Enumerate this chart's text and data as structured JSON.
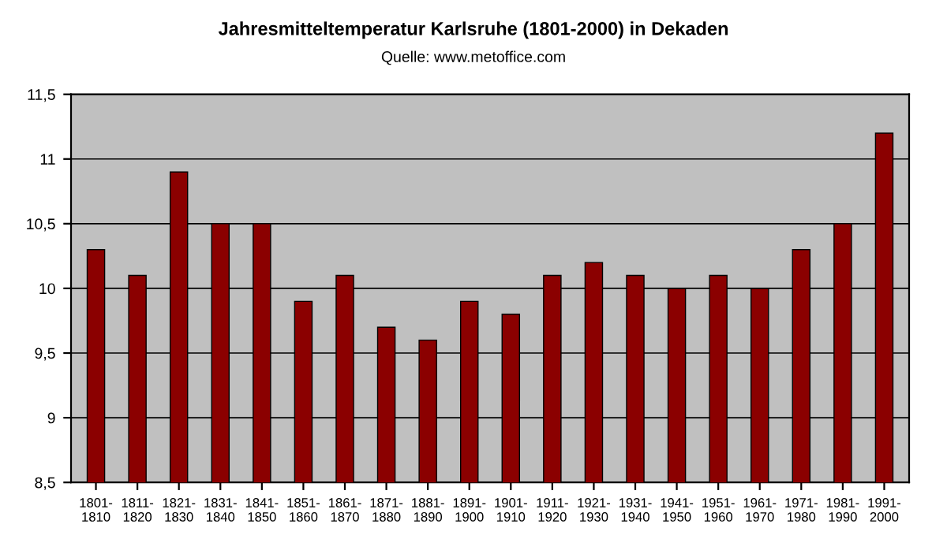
{
  "chart_data": {
    "type": "bar",
    "title": "Jahresmitteltemperatur Karlsruhe (1801-2000) in Dekaden",
    "annotations": [
      "Quelle: www.metoffice.com"
    ],
    "categories": [
      "1801-\n1810",
      "1811-\n1820",
      "1821-\n1830",
      "1831-\n1840",
      "1841-\n1850",
      "1851-\n1860",
      "1861-\n1870",
      "1871-\n1880",
      "1881-\n1890",
      "1891-\n1900",
      "1901-\n1910",
      "1911-\n1920",
      "1921-\n1930",
      "1931-\n1940",
      "1941-\n1950",
      "1951-\n1960",
      "1961-\n1970",
      "1971-\n1980",
      "1981-\n1990",
      "1991-\n2000"
    ],
    "values": [
      10.3,
      10.1,
      10.9,
      10.5,
      10.5,
      9.9,
      10.1,
      9.7,
      9.6,
      9.9,
      9.8,
      10.1,
      10.2,
      10.1,
      10.0,
      10.1,
      10.0,
      10.3,
      10.5,
      11.2
    ],
    "color": "#8b0000",
    "ylim": [
      8.5,
      11.5
    ],
    "yticks": [
      {
        "value": 8.5,
        "label": "8,5"
      },
      9,
      {
        "value": 9.5,
        "label": "9,5"
      },
      10,
      {
        "value": 10.5,
        "label": "10,5"
      },
      11,
      {
        "value": 11.5,
        "label": "11,5"
      }
    ],
    "grid": "y"
  }
}
